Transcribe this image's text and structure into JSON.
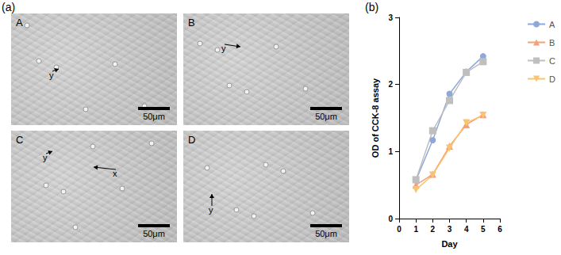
{
  "panel_labels": [
    "(a)",
    "(b)"
  ],
  "images": [
    {
      "label": "A",
      "scale_bar": "50μm",
      "annotations": [
        "y"
      ]
    },
    {
      "label": "B",
      "scale_bar": "50μm",
      "annotations": [
        "y"
      ]
    },
    {
      "label": "C",
      "scale_bar": "50μm",
      "annotations": [
        "y",
        "x"
      ]
    },
    {
      "label": "D",
      "scale_bar": "50μm",
      "annotations": [
        "y"
      ]
    }
  ],
  "chart_data": {
    "type": "line",
    "x_label": "Day",
    "y_label": "OD of CCK-8 assay",
    "x": [
      1,
      2,
      3,
      4,
      5
    ],
    "xlim": [
      0,
      6
    ],
    "xticks": [
      0,
      1,
      2,
      3,
      4,
      5,
      6
    ],
    "ylim": [
      0,
      3
    ],
    "yticks": [
      0,
      1,
      2,
      3
    ],
    "grid": false,
    "legend": "right",
    "series": [
      {
        "name": "A",
        "color": "#8fa8dc",
        "marker": "circle",
        "values": [
          0.57,
          1.17,
          1.86,
          2.19,
          2.42
        ]
      },
      {
        "name": "B",
        "color": "#f4a07a",
        "marker": "triangle",
        "values": [
          0.5,
          0.66,
          1.08,
          1.4,
          1.55
        ]
      },
      {
        "name": "C",
        "color": "#bfbfbf",
        "marker": "square",
        "values": [
          0.58,
          1.31,
          1.76,
          2.18,
          2.34
        ]
      },
      {
        "name": "D",
        "color": "#f8c471",
        "marker": "triangle_down",
        "values": [
          0.43,
          0.65,
          1.05,
          1.43,
          1.54
        ]
      }
    ]
  }
}
